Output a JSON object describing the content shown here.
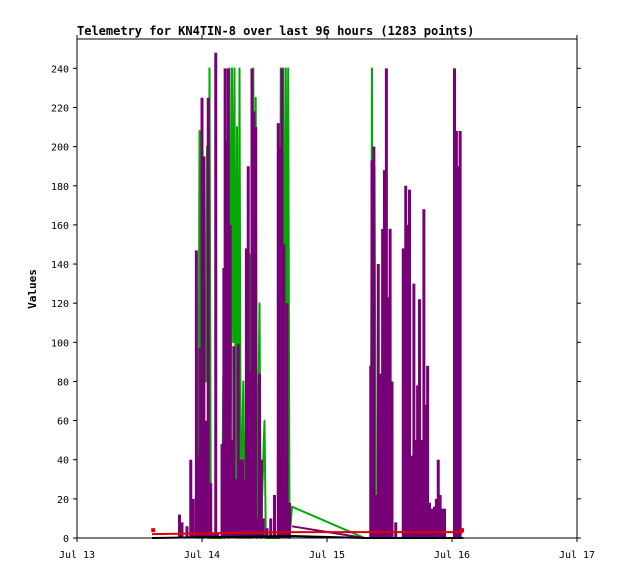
{
  "chart_data": {
    "type": "line",
    "title": "Telemetry for KN4TIN-8 over last 96 hours (1283 points)",
    "xlabel": "",
    "ylabel": "Values",
    "x_tick_labels": [
      "Jul 13",
      "Jul 14",
      "Jul 15",
      "Jul 16",
      "Jul 17"
    ],
    "x_ticks_days": [
      13,
      14,
      15,
      16,
      17
    ],
    "xlim_days": [
      13,
      17
    ],
    "ylim": [
      0,
      255
    ],
    "y_ticks": [
      0,
      20,
      40,
      60,
      80,
      100,
      120,
      140,
      160,
      180,
      200,
      220,
      240
    ],
    "grid": false,
    "legend": "none",
    "colors": {
      "green": "#00aa00",
      "purple": "#770077",
      "red": "#dd0000",
      "black": "#000000",
      "axis": "#000000"
    },
    "series": [
      {
        "color": "#00aa00",
        "style": "line",
        "points": [
          [
            13.95,
            0
          ],
          [
            13.96,
            97
          ],
          [
            13.97,
            0
          ],
          [
            13.98,
            208
          ],
          [
            13.99,
            40
          ],
          [
            14.0,
            96
          ],
          [
            14.01,
            0
          ],
          [
            14.02,
            128
          ],
          [
            14.03,
            80
          ],
          [
            14.04,
            200
          ],
          [
            14.05,
            0
          ],
          [
            14.06,
            240
          ],
          [
            14.07,
            0
          ],
          [
            14.16,
            0
          ],
          [
            14.17,
            82
          ],
          [
            14.18,
            0
          ],
          [
            14.2,
            145
          ],
          [
            14.21,
            0
          ],
          [
            14.22,
            240
          ],
          [
            14.23,
            40
          ],
          [
            14.24,
            240
          ],
          [
            14.25,
            100
          ],
          [
            14.26,
            240
          ],
          [
            14.27,
            20
          ],
          [
            14.28,
            210
          ],
          [
            14.29,
            0
          ],
          [
            14.3,
            240
          ],
          [
            14.31,
            0
          ],
          [
            14.33,
            80
          ],
          [
            14.34,
            0
          ],
          [
            14.36,
            97
          ],
          [
            14.37,
            0
          ],
          [
            14.38,
            145
          ],
          [
            14.39,
            0
          ],
          [
            14.41,
            240
          ],
          [
            14.42,
            30
          ],
          [
            14.43,
            225
          ],
          [
            14.44,
            0
          ],
          [
            14.46,
            120
          ],
          [
            14.47,
            0
          ],
          [
            14.5,
            60
          ],
          [
            14.51,
            0
          ],
          [
            14.62,
            0
          ],
          [
            14.63,
            240
          ],
          [
            14.64,
            60
          ],
          [
            14.65,
            240
          ],
          [
            14.66,
            20
          ],
          [
            14.67,
            240
          ],
          [
            14.68,
            100
          ],
          [
            14.69,
            240
          ],
          [
            14.7,
            0
          ],
          [
            14.72,
            16
          ],
          [
            15.3,
            0
          ],
          [
            15.35,
            0
          ],
          [
            15.36,
            240
          ],
          [
            15.37,
            0
          ],
          [
            15.38,
            190
          ],
          [
            15.39,
            0
          ]
        ]
      },
      {
        "color": "#770077",
        "style": "spikes",
        "points": [
          [
            13.82,
            12
          ],
          [
            13.84,
            8
          ],
          [
            13.88,
            6
          ],
          [
            13.91,
            40
          ],
          [
            13.93,
            20
          ],
          [
            13.955,
            147
          ],
          [
            13.97,
            42
          ],
          [
            13.985,
            97
          ],
          [
            14.0,
            225
          ],
          [
            14.015,
            195
          ],
          [
            14.03,
            60
          ],
          [
            14.05,
            225
          ],
          [
            14.07,
            28
          ],
          [
            14.09,
            2
          ],
          [
            14.11,
            248
          ],
          [
            14.125,
            2
          ],
          [
            14.16,
            48
          ],
          [
            14.175,
            138
          ],
          [
            14.185,
            240
          ],
          [
            14.2,
            203
          ],
          [
            14.21,
            240
          ],
          [
            14.225,
            160
          ],
          [
            14.24,
            50
          ],
          [
            14.255,
            98
          ],
          [
            14.27,
            30
          ],
          [
            14.29,
            99
          ],
          [
            14.31,
            40
          ],
          [
            14.325,
            40
          ],
          [
            14.34,
            30
          ],
          [
            14.355,
            148
          ],
          [
            14.37,
            190
          ],
          [
            14.385,
            85
          ],
          [
            14.4,
            240
          ],
          [
            14.415,
            218
          ],
          [
            14.43,
            210
          ],
          [
            14.445,
            10
          ],
          [
            14.46,
            84
          ],
          [
            14.475,
            40
          ],
          [
            14.49,
            10
          ],
          [
            14.52,
            5
          ],
          [
            14.55,
            10
          ],
          [
            14.58,
            22
          ],
          [
            14.61,
            212
          ],
          [
            14.625,
            200
          ],
          [
            14.64,
            240
          ],
          [
            14.655,
            150
          ],
          [
            14.67,
            42
          ],
          [
            14.68,
            120
          ],
          [
            14.7,
            18
          ],
          [
            15.35,
            88
          ],
          [
            15.36,
            193
          ],
          [
            15.375,
            200
          ],
          [
            15.39,
            22
          ],
          [
            15.41,
            140
          ],
          [
            15.43,
            84
          ],
          [
            15.445,
            158
          ],
          [
            15.46,
            188
          ],
          [
            15.475,
            240
          ],
          [
            15.49,
            123
          ],
          [
            15.505,
            158
          ],
          [
            15.52,
            80
          ],
          [
            15.55,
            8
          ],
          [
            15.58,
            0
          ],
          [
            15.61,
            148
          ],
          [
            15.63,
            180
          ],
          [
            15.645,
            160
          ],
          [
            15.66,
            178
          ],
          [
            15.68,
            42
          ],
          [
            15.695,
            130
          ],
          [
            15.71,
            50
          ],
          [
            15.725,
            78
          ],
          [
            15.74,
            122
          ],
          [
            15.76,
            50
          ],
          [
            15.775,
            168
          ],
          [
            15.79,
            68
          ],
          [
            15.805,
            88
          ],
          [
            15.82,
            18
          ],
          [
            15.84,
            15
          ],
          [
            15.86,
            16
          ],
          [
            15.875,
            20
          ],
          [
            15.89,
            40
          ],
          [
            15.905,
            22
          ],
          [
            15.92,
            15
          ],
          [
            15.94,
            15
          ],
          [
            16.02,
            240
          ],
          [
            16.035,
            208
          ],
          [
            16.05,
            190
          ],
          [
            16.065,
            208
          ]
        ]
      },
      {
        "color": "#770077",
        "style": "line",
        "points": [
          [
            14.72,
            6
          ],
          [
            15.3,
            0
          ]
        ]
      },
      {
        "color": "#dd0000",
        "style": "line",
        "points": [
          [
            13.6,
            2
          ],
          [
            14.72,
            3
          ],
          [
            15.3,
            3
          ],
          [
            16.09,
            3
          ]
        ]
      },
      {
        "color": "#dd0000",
        "style": "marker",
        "points": [
          [
            13.61,
            4
          ],
          [
            16.08,
            4
          ]
        ]
      },
      {
        "color": "#000000",
        "style": "line",
        "points": [
          [
            13.6,
            0
          ],
          [
            14.72,
            1
          ],
          [
            15.3,
            0
          ],
          [
            16.09,
            0
          ]
        ]
      }
    ]
  }
}
